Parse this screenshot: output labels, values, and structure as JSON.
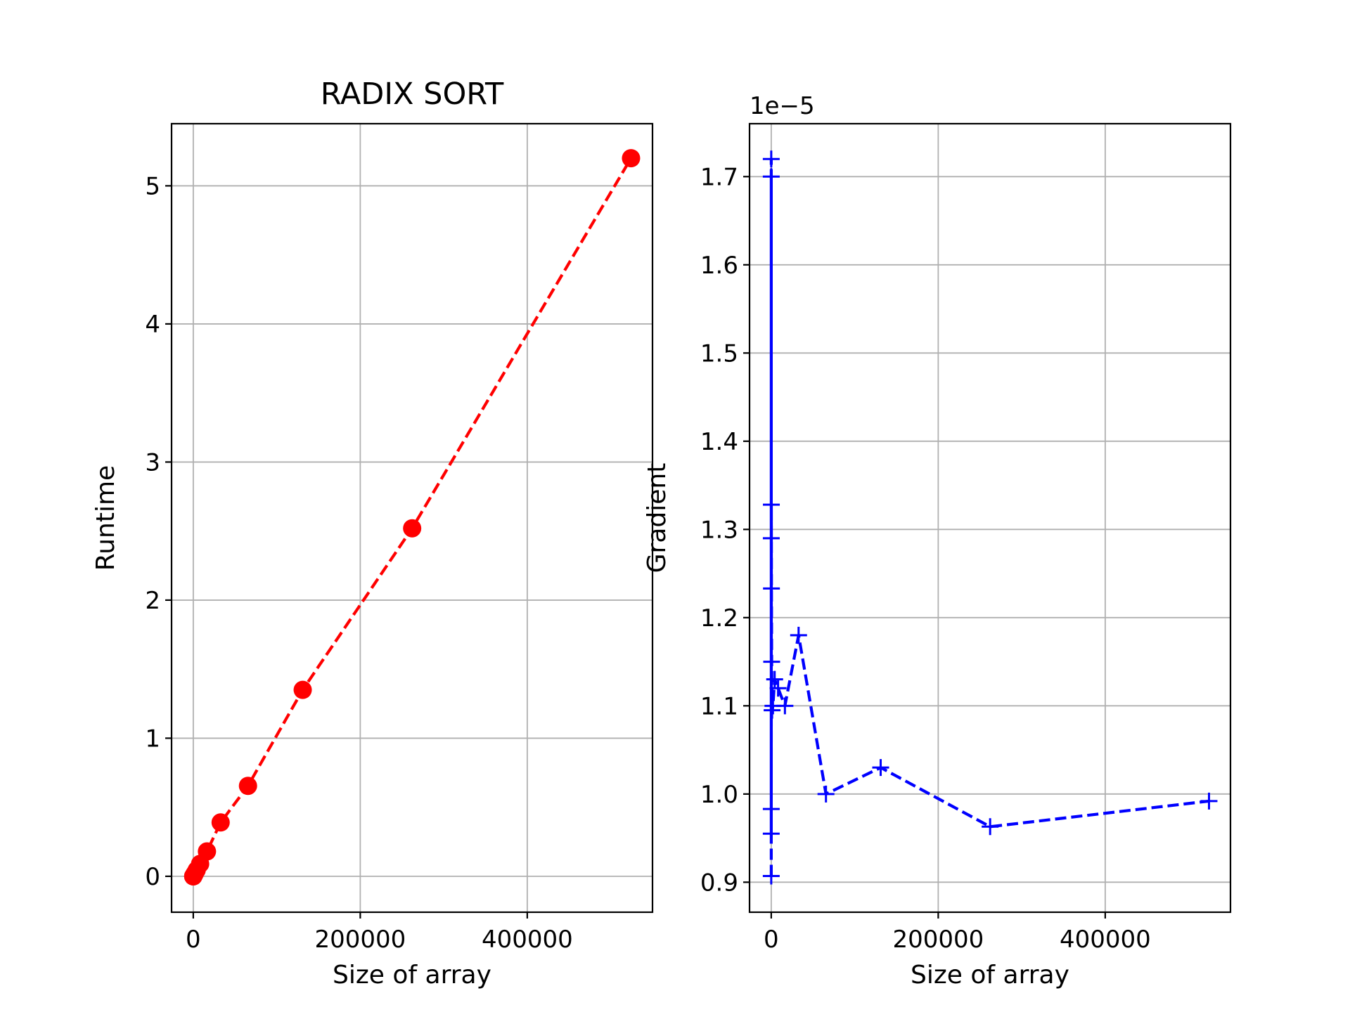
{
  "chart_data": [
    {
      "type": "line",
      "title": "RADIX SORT",
      "xlabel": "Size of array",
      "ylabel": "Runtime",
      "xlim": [
        -26000,
        550000
      ],
      "ylim": [
        -0.26,
        5.45
      ],
      "xticks": [
        0,
        200000,
        400000
      ],
      "xtick_labels": [
        "0",
        "200000",
        "400000"
      ],
      "yticks": [
        0,
        1,
        2,
        3,
        4,
        5
      ],
      "ytick_labels": [
        "0",
        "1",
        "2",
        "3",
        "4",
        "5"
      ],
      "grid": true,
      "series": [
        {
          "style": "red dashed line with circle markers",
          "color": "#ff0000",
          "marker": "circle",
          "x": [
            2,
            4,
            8,
            16,
            32,
            64,
            128,
            256,
            512,
            1024,
            2048,
            4096,
            8192,
            16384,
            32768,
            65536,
            131072,
            262144,
            524288
          ],
          "y": [
            0.0,
            0.0,
            0.0,
            0.0,
            0.0,
            0.001,
            0.001,
            0.003,
            0.006,
            0.011,
            0.023,
            0.045,
            0.09,
            0.18,
            0.39,
            0.655,
            1.35,
            2.52,
            5.2
          ]
        }
      ]
    },
    {
      "type": "line",
      "title": "",
      "offset_text": "1e−5",
      "xlabel": "Size of array",
      "ylabel": "Gradient",
      "xlim": [
        -26000,
        550000
      ],
      "ylim": [
        0.866,
        1.76
      ],
      "xticks": [
        0,
        200000,
        400000
      ],
      "xtick_labels": [
        "0",
        "200000",
        "400000"
      ],
      "yticks": [
        0.9,
        1.0,
        1.1,
        1.2,
        1.3,
        1.4,
        1.5,
        1.6,
        1.7
      ],
      "ytick_labels": [
        "0.9",
        "1.0",
        "1.1",
        "1.2",
        "1.3",
        "1.4",
        "1.5",
        "1.6",
        "1.7"
      ],
      "grid": true,
      "series": [
        {
          "style": "blue dashed line with plus markers",
          "color": "#0000ff",
          "marker": "plus",
          "x": [
            2,
            4,
            8,
            16,
            32,
            64,
            128,
            256,
            512,
            1024,
            2048,
            4096,
            8192,
            16384,
            32768,
            65536,
            131072,
            262144,
            524288
          ],
          "y": [
            0.907,
            1.72,
            0.955,
            1.7,
            0.983,
            1.29,
            1.328,
            1.233,
            1.15,
            1.095,
            1.1,
            1.13,
            1.12,
            1.1,
            1.18,
            1.0,
            1.03,
            0.963,
            0.992
          ]
        }
      ]
    }
  ]
}
